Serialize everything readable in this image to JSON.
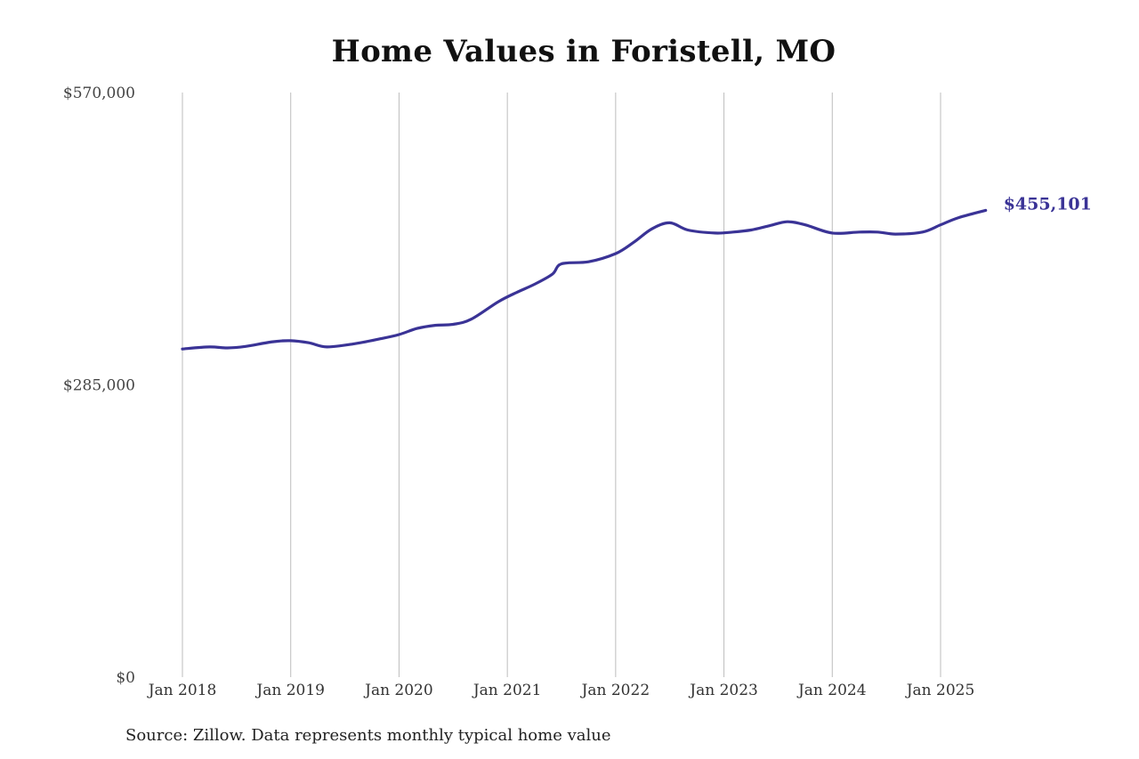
{
  "chart_data": {
    "type": "line",
    "title": "Home Values in Foristell, MO",
    "xlabel": "",
    "ylabel": "",
    "ylim": [
      0,
      570000
    ],
    "y_ticks": [
      0,
      285000,
      570000
    ],
    "y_tick_labels": [
      "$0",
      "$285,000",
      "$570,000"
    ],
    "x_ticks": [
      "2018-01",
      "2019-01",
      "2020-01",
      "2021-01",
      "2022-01",
      "2023-01",
      "2024-01",
      "2025-01"
    ],
    "x_tick_labels": [
      "Jan 2018",
      "Jan 2019",
      "Jan 2020",
      "Jan 2021",
      "Jan 2022",
      "Jan 2023",
      "Jan 2024",
      "Jan 2025"
    ],
    "vertical_grid": true,
    "horizontal_grid": false,
    "line_color": "#3a3396",
    "grid_color": "#bdbdbd",
    "end_label": "$455,101",
    "series": [
      {
        "x": [
          "2018-01",
          "2018-04",
          "2018-06",
          "2018-08",
          "2018-11",
          "2019-01",
          "2019-03",
          "2019-05",
          "2019-08",
          "2019-11",
          "2020-01",
          "2020-03",
          "2020-05",
          "2020-07",
          "2020-09",
          "2020-12",
          "2021-02",
          "2021-04",
          "2021-06",
          "2021-07",
          "2021-10",
          "2022-01",
          "2022-03",
          "2022-05",
          "2022-07",
          "2022-09",
          "2022-12",
          "2023-02",
          "2023-04",
          "2023-06",
          "2023-08",
          "2023-10",
          "2024-01",
          "2024-04",
          "2024-06",
          "2024-08",
          "2024-11",
          "2025-01",
          "2025-03",
          "2025-06"
        ],
        "values": [
          320000,
          322000,
          321000,
          322500,
          327000,
          328000,
          326000,
          322000,
          325000,
          330000,
          334000,
          340000,
          343000,
          344000,
          349000,
          366000,
          375000,
          383000,
          393000,
          403000,
          405000,
          413000,
          424000,
          437000,
          443000,
          436000,
          433000,
          434000,
          436000,
          440000,
          444000,
          441000,
          433000,
          434000,
          434000,
          432000,
          434000,
          441000,
          448000,
          455101
        ]
      }
    ]
  },
  "source_note": "Source: Zillow. Data represents monthly typical home value"
}
